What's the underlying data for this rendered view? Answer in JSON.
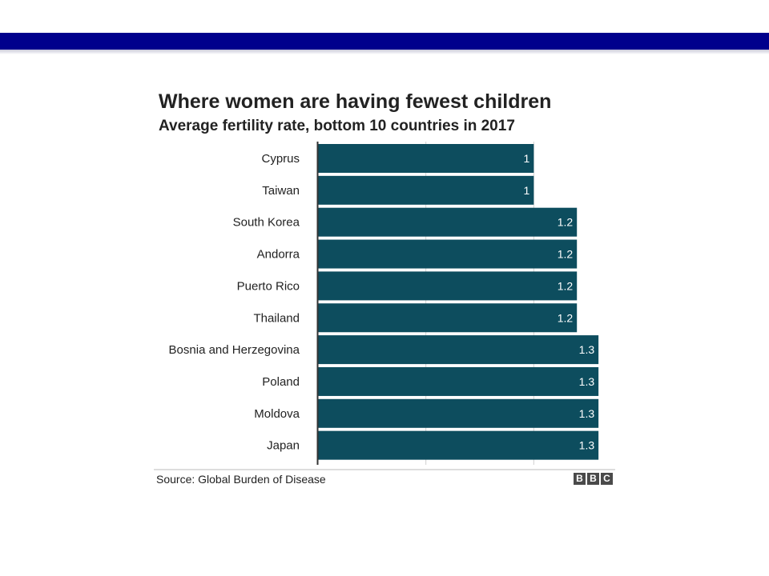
{
  "chart_data": {
    "type": "bar",
    "orientation": "horizontal",
    "title": "Where women are having fewest children",
    "subtitle": "Average fertility rate, bottom 10 countries in 2017",
    "categories": [
      "Cyprus",
      "Taiwan",
      "South Korea",
      "Andorra",
      "Puerto Rico",
      "Thailand",
      "Bosnia and Herzegovina",
      "Poland",
      "Moldova",
      "Japan"
    ],
    "values": [
      1,
      1,
      1.2,
      1.2,
      1.2,
      1.2,
      1.3,
      1.3,
      1.3,
      1.3
    ],
    "value_labels": [
      "1",
      "1",
      "1.2",
      "1.2",
      "1.2",
      "1.2",
      "1.3",
      "1.3",
      "1.3",
      "1.3"
    ],
    "xlim": [
      0,
      1.5
    ],
    "x_gridlines": [
      0.5,
      1.0
    ],
    "grid": true,
    "xlabel": "",
    "ylabel": "",
    "bar_color": "#0d4d5e",
    "label_color": "#ffffff",
    "source": "Source: Global Burden of Disease",
    "logo": [
      "B",
      "B",
      "C"
    ]
  },
  "colors": {
    "header_bar": "#00008c",
    "text": "#222222",
    "gridline": "#d0d0d0"
  }
}
